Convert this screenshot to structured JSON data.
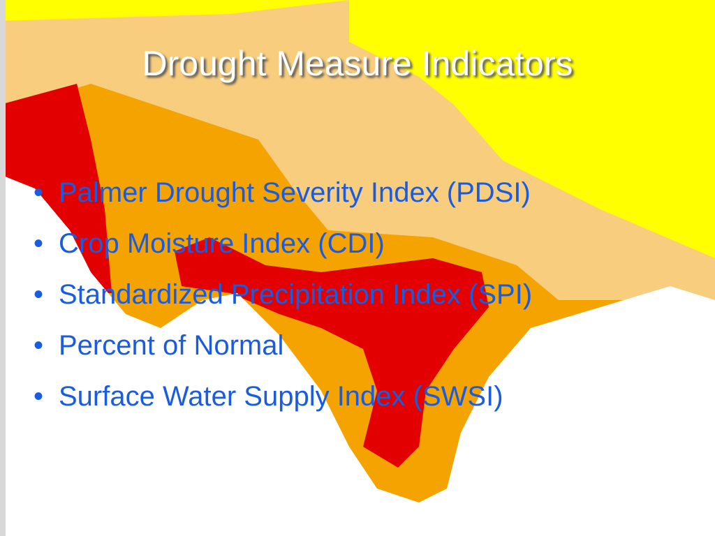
{
  "title": "Drought Measure Indicators",
  "bullets": [
    "Palmer Drought Severity Index (PDSI)",
    "Crop Moisture Index (CDI)",
    "Standardized Precipitation Index (SPI)",
    "Percent of Normal",
    "Surface Water Supply Index (SWSI)"
  ]
}
